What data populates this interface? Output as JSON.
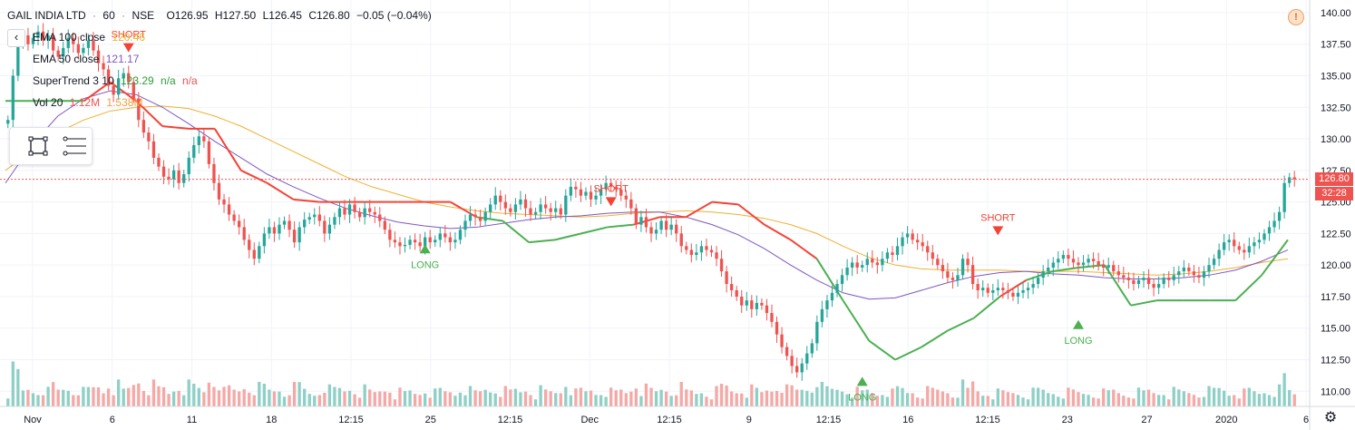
{
  "header": {
    "symbol": "GAIL INDIA LTD",
    "interval": "60",
    "exchange": "NSE",
    "sep": "·",
    "open": "O126.95",
    "high": "H127.50",
    "low": "L126.45",
    "close": "C126.80",
    "change": "−0.05 (−0.04%)"
  },
  "indicators": [
    {
      "name": "EMA 100 close",
      "value": "120.46",
      "color": "#f0b030"
    },
    {
      "name": "EMA 50 close",
      "value": "121.17",
      "color": "#7e57c2"
    },
    {
      "name": "SuperTrend 3 10",
      "value": "123.29",
      "value2": "n/a",
      "value3": "n/a",
      "color": "#2e9e3a"
    },
    {
      "name": "Vol 20",
      "value": "1.12M",
      "value2": "1.538M",
      "color": "#f0a040"
    }
  ],
  "collapse_glyph": "‹",
  "tools": [
    "rectangle-tool-icon",
    "lines-tool-icon"
  ],
  "alert_glyph": "!",
  "settings_glyph": "⚙",
  "current_price_label": "126.80",
  "countdown_label": "32:28",
  "colors": {
    "up": "#26a69a",
    "down": "#ef5350",
    "vol_up": "#8fd0c6",
    "vol_down": "#f4a9a6",
    "ema100": "#f0b030",
    "ema50": "#7e57c2",
    "st_long": "#4caf50",
    "st_short": "#f44336",
    "grid": "#f0f3fa",
    "price_line": "#ef5350"
  },
  "chart_data": {
    "type": "candlestick",
    "y_axis_ticks": [
      "140.00",
      "137.50",
      "135.00",
      "132.50",
      "130.00",
      "127.50",
      "125.00",
      "122.50",
      "120.00",
      "117.50",
      "115.00",
      "112.50",
      "110.00"
    ],
    "ylim": [
      108.8,
      141.0
    ],
    "x_axis_ticks": [
      "Nov",
      "6",
      "11",
      "18",
      "12:15",
      "25",
      "12:15",
      "Dec",
      "12:15",
      "9",
      "12:15",
      "16",
      "12:15",
      "23",
      "27",
      "2020",
      "6"
    ],
    "current_price": 126.8,
    "closes": [
      131.5,
      135.0,
      137.8,
      138.2,
      137.5,
      138.0,
      138.5,
      137.8,
      138.2,
      137.0,
      136.5,
      137.2,
      138.0,
      137.5,
      136.8,
      137.2,
      137.8,
      137.0,
      136.0,
      135.5,
      134.2,
      133.5,
      134.8,
      135.2,
      134.5,
      133.2,
      131.5,
      130.5,
      129.8,
      128.5,
      127.8,
      127.0,
      126.8,
      127.5,
      126.5,
      127.2,
      128.5,
      129.5,
      130.2,
      129.8,
      128.0,
      126.5,
      125.2,
      124.8,
      124.0,
      123.5,
      123.0,
      122.0,
      121.2,
      120.5,
      121.5,
      122.5,
      123.0,
      122.5,
      123.2,
      123.5,
      122.8,
      121.8,
      123.0,
      123.6,
      123.8,
      124.0,
      123.5,
      122.5,
      123.2,
      123.8,
      124.5,
      124.0,
      124.8,
      124.2,
      123.8,
      124.5,
      124.2,
      124.0,
      123.5,
      122.8,
      122.0,
      121.8,
      121.5,
      121.6,
      122.0,
      121.8,
      121.5,
      122.2,
      121.8,
      122.0,
      122.5,
      122.2,
      121.8,
      122.0,
      122.8,
      123.5,
      124.0,
      123.8,
      123.5,
      124.2,
      124.8,
      125.5,
      125.0,
      124.5,
      124.2,
      124.8,
      125.2,
      124.5,
      124.0,
      124.2,
      124.8,
      124.5,
      124.2,
      124.5,
      124.0,
      125.5,
      126.2,
      126.0,
      125.5,
      125.8,
      125.2,
      125.5,
      126.0,
      126.5,
      126.2,
      126.0,
      125.5,
      125.2,
      124.5,
      123.2,
      123.8,
      123.0,
      122.5,
      122.8,
      123.5,
      122.8,
      123.2,
      122.5,
      121.5,
      121.2,
      120.8,
      121.0,
      121.5,
      121.2,
      121.0,
      120.5,
      119.5,
      118.5,
      118.0,
      117.5,
      116.8,
      117.2,
      116.5,
      117.0,
      116.8,
      116.2,
      115.5,
      114.5,
      113.5,
      112.8,
      112.0,
      111.5,
      112.2,
      113.0,
      113.8,
      115.5,
      116.5,
      117.2,
      117.8,
      118.5,
      119.2,
      119.8,
      120.2,
      119.8,
      120.0,
      120.5,
      120.2,
      120.0,
      120.5,
      121.0,
      120.8,
      121.5,
      122.2,
      122.5,
      122.0,
      121.8,
      121.5,
      121.0,
      120.5,
      120.0,
      119.5,
      119.0,
      118.8,
      119.2,
      120.5,
      120.0,
      118.5,
      118.0,
      118.2,
      117.8,
      118.0,
      118.2,
      118.0,
      117.8,
      117.5,
      117.8,
      118.0,
      118.2,
      118.5,
      119.0,
      119.5,
      119.8,
      120.2,
      120.5,
      120.8,
      120.5,
      120.2,
      120.0,
      120.2,
      120.5,
      120.3,
      120.0,
      119.8,
      120.0,
      119.5,
      119.2,
      119.0,
      118.8,
      118.5,
      118.8,
      119.0,
      118.5,
      118.2,
      118.5,
      119.0,
      118.8,
      119.2,
      119.5,
      119.8,
      119.5,
      119.2,
      119.0,
      119.5,
      120.0,
      120.5,
      121.2,
      121.8,
      122.0,
      121.5,
      121.2,
      121.0,
      121.5,
      121.8,
      122.0,
      122.5,
      123.0,
      123.5,
      124.2,
      126.5,
      126.95,
      126.8
    ],
    "series": [
      {
        "name": "EMA 100 close",
        "values": [
          127.5,
          129.0,
          130.5,
          131.5,
          132.2,
          132.5,
          132.6,
          132.4,
          131.8,
          131.0,
          130.0,
          129.0,
          128.0,
          127.0,
          126.2,
          125.6,
          125.0,
          124.6,
          124.3,
          124.1,
          124.0,
          123.9,
          123.8,
          123.9,
          124.1,
          124.2,
          124.3,
          124.2,
          124.0,
          123.7,
          123.2,
          122.5,
          121.5,
          120.6,
          120.0,
          119.7,
          119.6,
          119.6,
          119.6,
          119.5,
          119.5,
          119.5,
          119.4,
          119.3,
          119.2,
          119.3,
          119.5,
          119.8,
          120.2,
          120.5
        ]
      },
      {
        "name": "EMA 50 close",
        "values": [
          126.5,
          129.5,
          131.8,
          133.2,
          133.8,
          133.5,
          132.5,
          131.2,
          129.8,
          128.5,
          127.2,
          126.2,
          125.3,
          124.5,
          123.9,
          123.4,
          123.1,
          122.9,
          123.0,
          123.3,
          123.6,
          123.8,
          123.9,
          124.1,
          124.2,
          124.2,
          123.8,
          123.2,
          122.4,
          121.3,
          120.0,
          118.8,
          117.8,
          117.3,
          117.4,
          118.0,
          118.6,
          119.1,
          119.4,
          119.5,
          119.3,
          119.2,
          119.0,
          118.9,
          118.9,
          119.0,
          119.2,
          119.6,
          120.3,
          121.2
        ]
      },
      {
        "name": "SuperTrend 3 10",
        "values": [
          133.0,
          133.0,
          133.0,
          133.0,
          134.5,
          133.0,
          131.0,
          130.8,
          130.8,
          127.5,
          126.5,
          125.2,
          125.0,
          125.0,
          125.0,
          125.0,
          125.0,
          125.0,
          123.8,
          123.5,
          121.8,
          122.0,
          122.5,
          123.0,
          123.2,
          123.8,
          123.8,
          125.0,
          124.8,
          123.2,
          122.0,
          120.5,
          117.2,
          114.0,
          112.5,
          113.5,
          114.8,
          115.8,
          117.5,
          118.8,
          119.5,
          119.8,
          120.0,
          116.8,
          117.2,
          117.2,
          117.2,
          117.2,
          119.2,
          122.0
        ]
      }
    ],
    "signals": [
      {
        "label": "SHORT",
        "type": "short"
      },
      {
        "label": "LONG",
        "type": "long"
      },
      {
        "label": "SHORT",
        "type": "short"
      },
      {
        "label": "LONG",
        "type": "long"
      },
      {
        "label": "SHORT",
        "type": "short"
      },
      {
        "label": "LONG",
        "type": "long"
      }
    ]
  }
}
